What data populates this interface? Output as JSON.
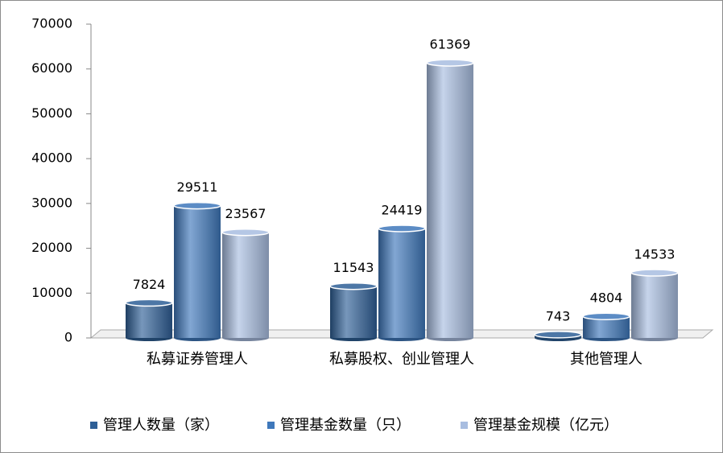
{
  "chart_data": {
    "type": "bar",
    "categories": [
      "私募证券管理人",
      "私募股权、创业管理人",
      "其他管理人"
    ],
    "series": [
      {
        "name": "管理人数量（家）",
        "color": "#2e5f96",
        "values": [
          7824,
          11543,
          743
        ]
      },
      {
        "name": "管理基金数量（只）",
        "color": "#3f78bb",
        "values": [
          29511,
          24419,
          4804
        ]
      },
      {
        "name": "管理基金规模（亿元）",
        "color": "#a8bde0",
        "values": [
          23567,
          61369,
          14533
        ]
      }
    ],
    "ylim": [
      0,
      70000
    ],
    "yticks": [
      0,
      10000,
      20000,
      30000,
      40000,
      50000,
      60000,
      70000
    ],
    "legend": "bottom"
  }
}
